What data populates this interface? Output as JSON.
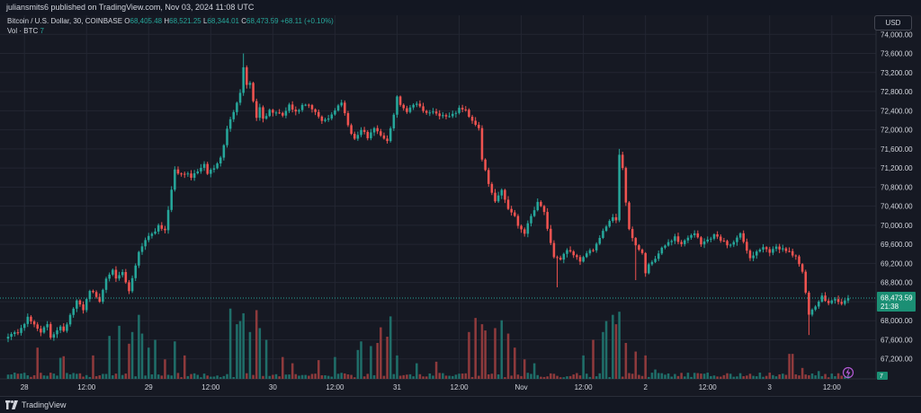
{
  "header": {
    "publisher_text": "juliansmits6 published on TradingView.com, Nov 03, 2024 11:08 UTC"
  },
  "legend": {
    "symbol": "Bitcoin / U.S. Dollar, 30, COINBASE",
    "o_label": "O",
    "o_value": "68,405.48",
    "h_label": "H",
    "h_value": "68,521.25",
    "l_label": "L",
    "l_value": "68,344.01",
    "c_label": "C",
    "c_value": "68,473.59",
    "change": "+68.11 (+0.10%)",
    "vol_label": "Vol · BTC",
    "vol_value": "7"
  },
  "currency_button": "USD",
  "footer": {
    "brand": "TradingView",
    "brand_icon": "tradingview-logo-icon"
  },
  "colors": {
    "background": "#161923",
    "grid": "#232632",
    "text": "#d1d4dc",
    "up": "#26a69a",
    "down": "#ef5350",
    "vol_up": "#1f6e69",
    "vol_down": "#8e3a3c",
    "price_label_bg": "#1b8f74",
    "flash_icon": "#b55ad6"
  },
  "chart_data": {
    "type": "candlestick",
    "timeframe": "30",
    "y_axis": {
      "range": [
        66800,
        74400
      ],
      "ticks": [
        "74,000.00",
        "73,600.00",
        "73,200.00",
        "72,800.00",
        "72,400.00",
        "72,000.00",
        "71,600.00",
        "71,200.00",
        "70,800.00",
        "70,400.00",
        "70,000.00",
        "69,600.00",
        "69,200.00",
        "68,800.00",
        "68,400.00",
        "68,000.00",
        "67,600.00",
        "67,200.00"
      ],
      "tick_values": [
        74000,
        73600,
        73200,
        72800,
        72400,
        72000,
        71600,
        71200,
        70800,
        70400,
        70000,
        69600,
        69200,
        68800,
        68400,
        68000,
        67600,
        67200
      ]
    },
    "x_axis": {
      "ticks": [
        "28",
        "12:00",
        "29",
        "12:00",
        "30",
        "12:00",
        "31",
        "12:00",
        "Nov",
        "12:00",
        "2",
        "12:00",
        "3",
        "12:00"
      ],
      "tick_bar_index": [
        5,
        24,
        43,
        62,
        81,
        100,
        119,
        138,
        157,
        176,
        195,
        214,
        233,
        252
      ]
    },
    "last_price": {
      "label": "68,473.59",
      "countdown": "21:38",
      "value": 68473.59
    },
    "last_volume": {
      "label": "7"
    },
    "anchors": [
      [
        0,
        67700
      ],
      [
        3,
        67760
      ],
      [
        6,
        68050
      ],
      [
        8,
        67920
      ],
      [
        10,
        67780
      ],
      [
        12,
        67900
      ],
      [
        13,
        67650
      ],
      [
        16,
        67900
      ],
      [
        17,
        67800
      ],
      [
        19,
        68100
      ],
      [
        21,
        68400
      ],
      [
        23,
        68250
      ],
      [
        25,
        68650
      ],
      [
        27,
        68500
      ],
      [
        28,
        68400
      ],
      [
        30,
        68900
      ],
      [
        32,
        69100
      ],
      [
        33,
        68850
      ],
      [
        35,
        69000
      ],
      [
        37,
        68600
      ],
      [
        40,
        69450
      ],
      [
        42,
        69700
      ],
      [
        45,
        69900
      ],
      [
        46,
        70000
      ],
      [
        48,
        69900
      ],
      [
        51,
        71200
      ],
      [
        52,
        71050
      ],
      [
        54,
        71100
      ],
      [
        56,
        71000
      ],
      [
        58,
        71150
      ],
      [
        60,
        71250
      ],
      [
        61,
        71100
      ],
      [
        63,
        71200
      ],
      [
        65,
        71400
      ],
      [
        67,
        72000
      ],
      [
        69,
        72400
      ],
      [
        71,
        72800
      ],
      [
        72,
        73300
      ],
      [
        73,
        72950
      ],
      [
        74,
        73000
      ],
      [
        75,
        72600
      ],
      [
        76,
        72250
      ],
      [
        77,
        72500
      ],
      [
        78,
        72200
      ],
      [
        80,
        72400
      ],
      [
        82,
        72350
      ],
      [
        84,
        72300
      ],
      [
        86,
        72500
      ],
      [
        88,
        72350
      ],
      [
        90,
        72500
      ],
      [
        92,
        72500
      ],
      [
        94,
        72350
      ],
      [
        96,
        72200
      ],
      [
        98,
        72250
      ],
      [
        100,
        72400
      ],
      [
        102,
        72600
      ],
      [
        104,
        72100
      ],
      [
        106,
        71800
      ],
      [
        108,
        72000
      ],
      [
        110,
        71850
      ],
      [
        112,
        72050
      ],
      [
        114,
        71900
      ],
      [
        116,
        71750
      ],
      [
        117,
        72000
      ],
      [
        119,
        72700
      ],
      [
        120,
        72500
      ],
      [
        122,
        72400
      ],
      [
        124,
        72550
      ],
      [
        126,
        72500
      ],
      [
        128,
        72350
      ],
      [
        130,
        72400
      ],
      [
        132,
        72300
      ],
      [
        134,
        72300
      ],
      [
        136,
        72300
      ],
      [
        138,
        72450
      ],
      [
        140,
        72400
      ],
      [
        142,
        72200
      ],
      [
        144,
        72050
      ],
      [
        145,
        71400
      ],
      [
        147,
        70850
      ],
      [
        149,
        70500
      ],
      [
        151,
        70750
      ],
      [
        153,
        70350
      ],
      [
        155,
        70200
      ],
      [
        156,
        70000
      ],
      [
        158,
        69850
      ],
      [
        160,
        70200
      ],
      [
        162,
        70500
      ],
      [
        164,
        70300
      ],
      [
        165,
        69900
      ],
      [
        167,
        69300
      ],
      [
        169,
        69300
      ],
      [
        171,
        69500
      ],
      [
        173,
        69350
      ],
      [
        175,
        69250
      ],
      [
        177,
        69400
      ],
      [
        179,
        69500
      ],
      [
        181,
        69700
      ],
      [
        183,
        70000
      ],
      [
        185,
        70200
      ],
      [
        186,
        70100
      ],
      [
        187,
        71500
      ],
      [
        188,
        71200
      ],
      [
        189,
        70500
      ],
      [
        190,
        69900
      ],
      [
        192,
        69600
      ],
      [
        193,
        69500
      ],
      [
        194,
        69400
      ],
      [
        195,
        69000
      ],
      [
        196,
        69150
      ],
      [
        198,
        69300
      ],
      [
        200,
        69500
      ],
      [
        202,
        69650
      ],
      [
        204,
        69750
      ],
      [
        206,
        69600
      ],
      [
        208,
        69750
      ],
      [
        210,
        69850
      ],
      [
        212,
        69600
      ],
      [
        214,
        69700
      ],
      [
        216,
        69800
      ],
      [
        218,
        69700
      ],
      [
        220,
        69600
      ],
      [
        222,
        69650
      ],
      [
        224,
        69800
      ],
      [
        226,
        69500
      ],
      [
        227,
        69300
      ],
      [
        229,
        69450
      ],
      [
        231,
        69550
      ],
      [
        233,
        69400
      ],
      [
        235,
        69550
      ],
      [
        237,
        69500
      ],
      [
        239,
        69450
      ],
      [
        241,
        69350
      ],
      [
        243,
        69000
      ],
      [
        244,
        68600
      ],
      [
        245,
        68100
      ],
      [
        247,
        68300
      ],
      [
        249,
        68500
      ],
      [
        251,
        68400
      ],
      [
        253,
        68450
      ],
      [
        255,
        68350
      ],
      [
        257,
        68473
      ]
    ],
    "spikes": [
      {
        "bar": 72,
        "high": 73600
      },
      {
        "bar": 187,
        "high": 71600
      },
      {
        "bar": 168,
        "low": 68700
      },
      {
        "bar": 192,
        "low": 68850
      },
      {
        "bar": 245,
        "low": 67700
      }
    ],
    "volume": {
      "base_level": 2,
      "peaks": [
        {
          "bar": 2,
          "level": 8
        },
        {
          "bar": 9,
          "level": 40
        },
        {
          "bar": 16,
          "level": 27
        },
        {
          "bar": 17,
          "level": 29
        },
        {
          "bar": 26,
          "level": 30
        },
        {
          "bar": 31,
          "level": 55
        },
        {
          "bar": 34,
          "level": 68
        },
        {
          "bar": 37,
          "level": 45
        },
        {
          "bar": 38,
          "level": 60
        },
        {
          "bar": 40,
          "level": 82
        },
        {
          "bar": 41,
          "level": 58
        },
        {
          "bar": 43,
          "level": 40
        },
        {
          "bar": 45,
          "level": 50
        },
        {
          "bar": 48,
          "level": 25
        },
        {
          "bar": 51,
          "level": 48
        },
        {
          "bar": 54,
          "level": 30
        },
        {
          "bar": 68,
          "level": 90
        },
        {
          "bar": 70,
          "level": 70
        },
        {
          "bar": 71,
          "level": 74
        },
        {
          "bar": 72,
          "level": 84
        },
        {
          "bar": 74,
          "level": 60
        },
        {
          "bar": 76,
          "level": 88
        },
        {
          "bar": 77,
          "level": 65
        },
        {
          "bar": 79,
          "level": 50
        },
        {
          "bar": 84,
          "level": 28
        },
        {
          "bar": 87,
          "level": 20
        },
        {
          "bar": 95,
          "level": 24
        },
        {
          "bar": 100,
          "level": 28
        },
        {
          "bar": 107,
          "level": 37
        },
        {
          "bar": 108,
          "level": 48
        },
        {
          "bar": 111,
          "level": 42
        },
        {
          "bar": 113,
          "level": 46
        },
        {
          "bar": 114,
          "level": 66
        },
        {
          "bar": 116,
          "level": 54
        },
        {
          "bar": 117,
          "level": 80
        },
        {
          "bar": 119,
          "level": 30
        },
        {
          "bar": 125,
          "level": 20
        },
        {
          "bar": 131,
          "level": 22
        },
        {
          "bar": 141,
          "level": 60
        },
        {
          "bar": 143,
          "level": 78
        },
        {
          "bar": 145,
          "level": 70
        },
        {
          "bar": 146,
          "level": 62
        },
        {
          "bar": 149,
          "level": 65
        },
        {
          "bar": 151,
          "level": 75
        },
        {
          "bar": 153,
          "level": 58
        },
        {
          "bar": 155,
          "level": 40
        },
        {
          "bar": 158,
          "level": 25
        },
        {
          "bar": 161,
          "level": 20
        },
        {
          "bar": 176,
          "level": 30
        },
        {
          "bar": 179,
          "level": 50
        },
        {
          "bar": 182,
          "level": 60
        },
        {
          "bar": 183,
          "level": 74
        },
        {
          "bar": 185,
          "level": 82
        },
        {
          "bar": 186,
          "level": 70
        },
        {
          "bar": 187,
          "level": 86
        },
        {
          "bar": 189,
          "level": 46
        },
        {
          "bar": 192,
          "level": 35
        },
        {
          "bar": 195,
          "level": 30
        },
        {
          "bar": 198,
          "level": 12
        },
        {
          "bar": 214,
          "level": 8
        },
        {
          "bar": 230,
          "level": 8
        },
        {
          "bar": 239,
          "level": 32
        },
        {
          "bar": 240,
          "level": 32
        },
        {
          "bar": 243,
          "level": 14
        },
        {
          "bar": 248,
          "level": 10
        }
      ]
    }
  }
}
